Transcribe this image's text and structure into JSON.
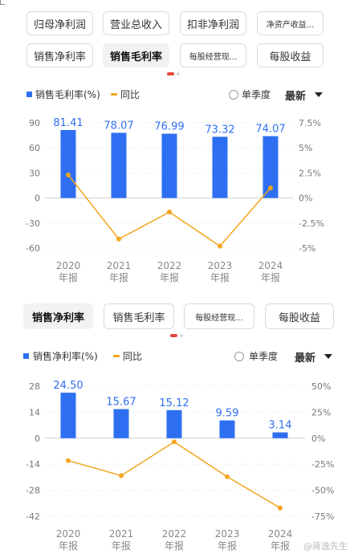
{
  "tabs_top": {
    "row1": [
      "归母净利润",
      "营业总收入",
      "扣非净利润",
      "净资产收益..."
    ],
    "row2": [
      "销售净利率",
      "销售毛利率",
      "每股经营现...",
      "每股收益"
    ],
    "active": "销售毛利率"
  },
  "tabs_bottom": {
    "row": [
      "销售净利率",
      "销售毛利率",
      "每股经营现...",
      "每股收益"
    ],
    "active": "销售净利率"
  },
  "controls": {
    "single_quarter_label": "单季度",
    "period_select": "最新"
  },
  "colors": {
    "bar": "#2e6ff2",
    "line": "#f3a51c",
    "dot_active": "#e8453c",
    "dot_inactive": "#d8d8d8"
  },
  "watermark": "@蒋逸先生",
  "chart_data": [
    {
      "type": "bar",
      "categories": [
        "2020\n年报",
        "2021\n年报",
        "2022\n年报",
        "2023\n年报",
        "2024\n年报"
      ],
      "series": [
        {
          "name": "销售毛利率(%)",
          "type": "bar",
          "axis": "left",
          "values": [
            81.41,
            78.07,
            76.99,
            73.32,
            74.07
          ]
        },
        {
          "name": "同比",
          "type": "line",
          "axis": "right",
          "values": [
            2.3,
            -4.1,
            -1.4,
            -4.8,
            1.0
          ]
        }
      ],
      "left_ticks": [
        "90",
        "60",
        "30",
        "0",
        "-30",
        "-60"
      ],
      "left_tick_values": [
        90,
        60,
        30,
        0,
        -30,
        -60
      ],
      "right_ticks": [
        "7.5%",
        "5%",
        "2.5%",
        "0%",
        "-2.5%",
        "-5%"
      ],
      "right_tick_values": [
        7.5,
        5,
        2.5,
        0,
        -2.5,
        -5
      ],
      "ylim_left": [
        -60,
        90
      ],
      "ylim_right": [
        -5,
        7.5
      ],
      "grid": true,
      "legend_position": "top-left"
    },
    {
      "type": "bar",
      "categories": [
        "2020\n年报",
        "2021\n年报",
        "2022\n年报",
        "2023\n年报",
        "2024\n年报"
      ],
      "series": [
        {
          "name": "销售净利率(%)",
          "type": "bar",
          "axis": "left",
          "values": [
            24.5,
            15.67,
            15.12,
            9.59,
            3.14
          ]
        },
        {
          "name": "同比",
          "type": "line",
          "axis": "right",
          "values": [
            -21.5,
            -36.0,
            -3.5,
            -37.0,
            -67.0
          ]
        }
      ],
      "left_ticks": [
        "28",
        "14",
        "0",
        "-14",
        "-28",
        "-42"
      ],
      "left_tick_values": [
        28,
        14,
        0,
        -14,
        -28,
        -42
      ],
      "right_ticks": [
        "50%",
        "25%",
        "0%",
        "-25%",
        "-50%",
        "-75%"
      ],
      "right_tick_values": [
        50,
        25,
        0,
        -25,
        -50,
        -75
      ],
      "ylim_left": [
        -42,
        28
      ],
      "ylim_right": [
        -75,
        50
      ],
      "grid": true,
      "legend_position": "top-left"
    }
  ]
}
